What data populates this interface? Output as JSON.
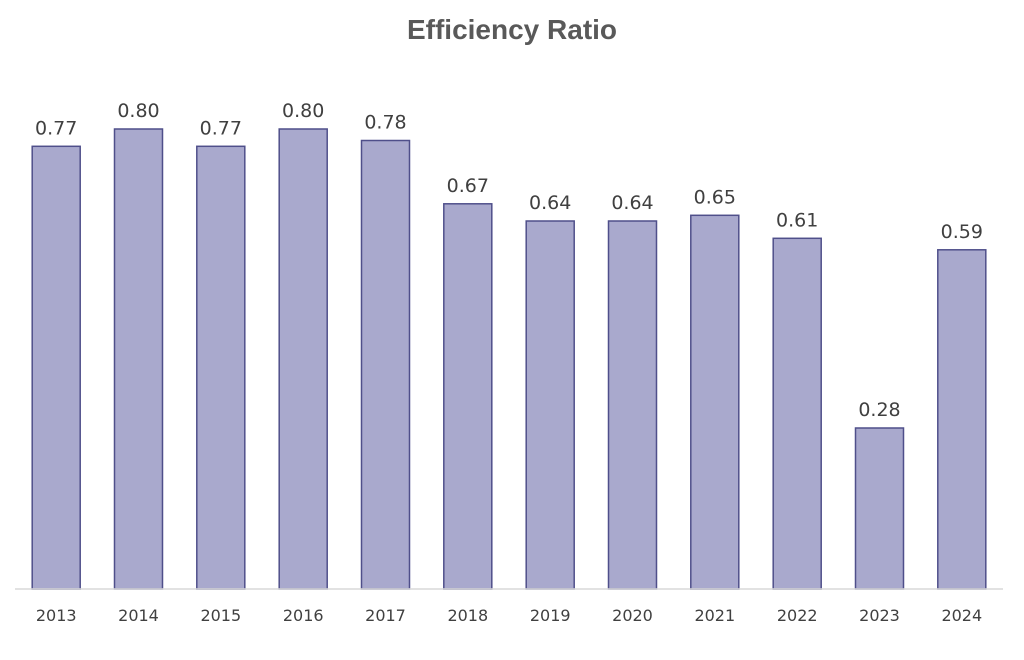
{
  "chart_data": {
    "type": "bar",
    "title": "Efficiency Ratio",
    "xlabel": "",
    "ylabel": "",
    "categories": [
      "2013",
      "2014",
      "2015",
      "2016",
      "2017",
      "2018",
      "2019",
      "2020",
      "2021",
      "2022",
      "2023",
      "2024"
    ],
    "values": [
      0.77,
      0.8,
      0.77,
      0.8,
      0.78,
      0.67,
      0.64,
      0.64,
      0.65,
      0.61,
      0.28,
      0.59
    ],
    "value_labels": [
      "0.77",
      "0.80",
      "0.77",
      "0.80",
      "0.78",
      "0.67",
      "0.64",
      "0.64",
      "0.65",
      "0.61",
      "0.28",
      "0.59"
    ],
    "ylim": [
      0,
      0.8
    ],
    "grid": false,
    "legend": "none"
  },
  "colors": {
    "bar_fill": "#a9a9cd",
    "bar_stroke": "#4f4f8a",
    "title_text": "#595959",
    "label_text": "#404040",
    "axis_line": "#d9d9d9"
  }
}
